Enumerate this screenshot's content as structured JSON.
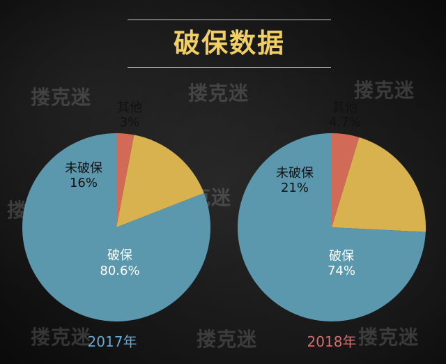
{
  "title": "破保数据",
  "watermark_text": "搂克迷",
  "colors": {
    "title": "#f2cf63",
    "pie_main": "#5b98ad",
    "pie_unbroken": "#d8b24f",
    "pie_other": "#d26a58",
    "label_dark": "#111111",
    "label_light": "#ffffff"
  },
  "chart_data": [
    {
      "type": "pie",
      "title": "",
      "year_label": "2017年",
      "year_color": "#6aa9d1",
      "slices": [
        {
          "label": "其他",
          "value": 3,
          "value_text": "3%",
          "color": "#d26a58"
        },
        {
          "label": "未破保",
          "value": 16,
          "value_text": "16%",
          "color": "#d8b24f"
        },
        {
          "label": "破保",
          "value": 80.6,
          "value_text": "80.6%",
          "color": "#5b98ad"
        }
      ]
    },
    {
      "type": "pie",
      "title": "",
      "year_label": "2018年",
      "year_color": "#d56f6f",
      "slices": [
        {
          "label": "其他",
          "value": 4.7,
          "value_text": "4.7%",
          "color": "#d26a58"
        },
        {
          "label": "未破保",
          "value": 21,
          "value_text": "21%",
          "color": "#d8b24f"
        },
        {
          "label": "破保",
          "value": 74,
          "value_text": "74%",
          "color": "#5b98ad"
        }
      ]
    }
  ]
}
